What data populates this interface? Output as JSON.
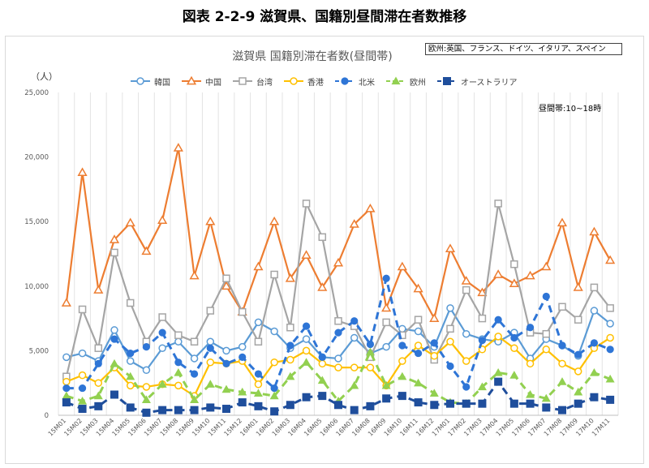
{
  "page_title": "図表 2-2-9 滋賀県、国籍別昼間滞在者数推移",
  "note": "欧州:英国、フランス、ドイツ、イタリア、スペイン",
  "time_note": "昼間帯:10~18時",
  "y_unit": "（人）",
  "chart_data": {
    "type": "line",
    "title": "滋賀県 国籍別滞在者数(昼間帯)",
    "xlabel": "",
    "ylabel": "（人）",
    "ylim": [
      0,
      25000
    ],
    "yticks": [
      "0",
      "5,000",
      "10,000",
      "15,000",
      "20,000",
      "25,000"
    ],
    "grid": "vertical",
    "legend_position": "top",
    "categories": [
      "15M01",
      "15M02",
      "15M03",
      "15M04",
      "15M05",
      "15M06",
      "15M07",
      "15M08",
      "15M09",
      "15M10",
      "15M11",
      "15M12",
      "16M01",
      "16M02",
      "16M03",
      "16M04",
      "16M05",
      "16M06",
      "16M07",
      "16M08",
      "16M09",
      "16M10",
      "16M11",
      "16M12",
      "17M01",
      "17M02",
      "17M03",
      "17M04",
      "17M05",
      "17M06",
      "17M07",
      "17M08",
      "17M09",
      "17M10",
      "17M11"
    ],
    "series": [
      {
        "name": "韓国",
        "color": "#5b9bd5",
        "marker": "circle-open",
        "dash": false,
        "values": [
          4500,
          4800,
          4200,
          6600,
          4200,
          3500,
          5200,
          5700,
          4400,
          5700,
          5000,
          5300,
          7200,
          6500,
          5200,
          5900,
          4500,
          4400,
          6000,
          4800,
          5300,
          6700,
          6500,
          5300,
          8300,
          6300,
          5900,
          5700,
          6400,
          4400,
          5900,
          5400,
          4600,
          8100,
          7100
        ]
      },
      {
        "name": "中国",
        "color": "#ed7d31",
        "marker": "triangle-open",
        "dash": false,
        "values": [
          8700,
          18800,
          9700,
          13600,
          14900,
          12700,
          15100,
          20700,
          10800,
          15000,
          10000,
          8000,
          11500,
          15000,
          10600,
          12400,
          9900,
          11800,
          14800,
          16000,
          8300,
          11500,
          9800,
          7500,
          12900,
          10400,
          9500,
          10900,
          10200,
          10800,
          11500,
          14900,
          9900,
          14200,
          12000
        ]
      },
      {
        "name": "台湾",
        "color": "#a5a5a5",
        "marker": "square-open",
        "dash": false,
        "values": [
          3000,
          8200,
          5200,
          12600,
          8700,
          5700,
          7600,
          6200,
          5700,
          8100,
          10600,
          8000,
          5700,
          10900,
          6800,
          16400,
          13800,
          7300,
          6900,
          4500,
          7200,
          6200,
          7400,
          4300,
          6700,
          9700,
          7500,
          16400,
          11700,
          6400,
          6300,
          8400,
          7400,
          9900,
          8300
        ]
      },
      {
        "name": "香港",
        "color": "#ffc000",
        "marker": "circle-open",
        "dash": false,
        "values": [
          2600,
          3100,
          2500,
          3700,
          2300,
          2200,
          2400,
          2300,
          1500,
          4100,
          4000,
          4200,
          2400,
          4100,
          4300,
          5000,
          4000,
          3700,
          3700,
          3700,
          2300,
          4200,
          5400,
          4600,
          5700,
          4200,
          5100,
          6100,
          5200,
          4000,
          5100,
          4000,
          3400,
          5200,
          6000
        ]
      },
      {
        "name": "北米",
        "color": "#2e75d6",
        "marker": "circle-filled",
        "dash": true,
        "values": [
          2100,
          2100,
          4000,
          5900,
          4800,
          5300,
          6400,
          4100,
          3200,
          5200,
          4000,
          4500,
          3200,
          2100,
          5400,
          6900,
          4500,
          6400,
          7300,
          5500,
          10600,
          5400,
          4800,
          5600,
          3800,
          2200,
          5800,
          7400,
          6000,
          6800,
          9200,
          5400,
          4700,
          5600,
          5100
        ]
      },
      {
        "name": "欧州",
        "color": "#92d050",
        "marker": "triangle-filled",
        "dash": true,
        "values": [
          1500,
          1100,
          1500,
          4000,
          3000,
          1200,
          2400,
          3300,
          1200,
          2400,
          2000,
          1800,
          1700,
          1500,
          3000,
          4100,
          2700,
          1100,
          2300,
          4900,
          2300,
          3000,
          2500,
          1700,
          1000,
          900,
          2200,
          3300,
          3100,
          1600,
          1300,
          2600,
          1800,
          3300,
          2800
        ]
      },
      {
        "name": "オーストラリア",
        "color": "#1f4e9c",
        "marker": "square-filled",
        "dash": true,
        "values": [
          1000,
          500,
          700,
          1600,
          600,
          200,
          400,
          400,
          400,
          600,
          500,
          1000,
          700,
          300,
          800,
          1400,
          1500,
          800,
          400,
          700,
          1300,
          1500,
          1000,
          800,
          900,
          900,
          900,
          2600,
          900,
          900,
          600,
          400,
          900,
          1400,
          1200
        ]
      }
    ]
  }
}
